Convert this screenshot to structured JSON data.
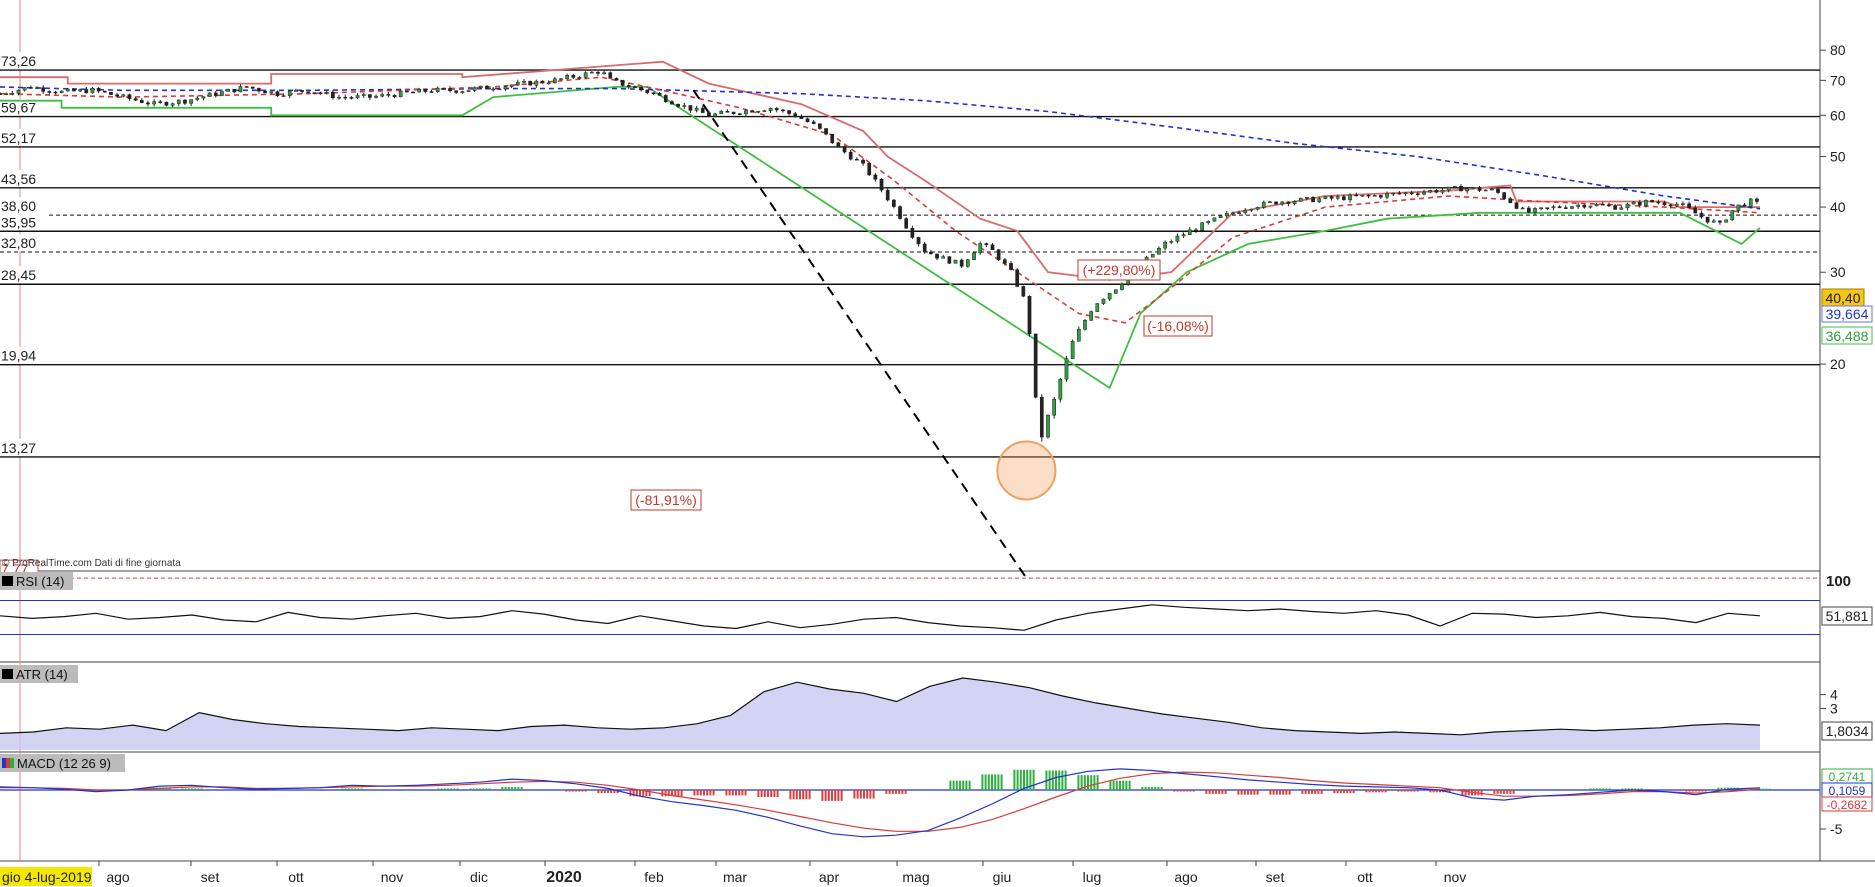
{
  "source_note": "© ProRealTime.com  Dati di fine giornata",
  "date_badge": "gio 4-lug-2019",
  "year_label": "2020",
  "colors": {
    "price_bull": "#2e9e3e",
    "price_bear": "#222222",
    "ma_short": "#d93a3a",
    "ma_long": "#2233cc",
    "stop_high": "#d96b6b",
    "stop_low": "#3fbf3f",
    "level_line": "#111111",
    "annotation": "#c0392b",
    "highlight_circle": "#f0a060",
    "indicator_fill": "#c8c8f0",
    "macd_line": "#2233cc",
    "macd_signal": "#d93a3a",
    "hist_pos": "#2eaf3e",
    "hist_neg": "#d94040",
    "last_price_bg": "#f5c518"
  },
  "chart_data": [
    {
      "type": "candlestick",
      "title": "",
      "x_labels": [
        "ago",
        "set",
        "ott",
        "nov",
        "dic",
        "2020",
        "feb",
        "mar",
        "apr",
        "mag",
        "giu",
        "lug",
        "ago",
        "set",
        "ott",
        "nov"
      ],
      "y_ticks": [
        20,
        30,
        40,
        50,
        60,
        70,
        80
      ],
      "ylim": [
        10,
        80
      ],
      "levels": [
        {
          "value": "73,26",
          "style": "solid"
        },
        {
          "value": "59,67",
          "style": "solid"
        },
        {
          "value": "52,17",
          "style": "solid"
        },
        {
          "value": "43,56",
          "style": "solid"
        },
        {
          "value": "38,60",
          "style": "dashed"
        },
        {
          "value": "35,95",
          "style": "solid"
        },
        {
          "value": "32,80",
          "style": "dashed"
        },
        {
          "value": "28,45",
          "style": "solid"
        },
        {
          "value": "19,94",
          "style": "solid"
        },
        {
          "value": "13,27",
          "style": "solid"
        },
        {
          "value": "7,77",
          "style": "dashed-red"
        }
      ],
      "annotations": [
        "(-81,91%)",
        "(+229,80%)",
        "(-16,08%)"
      ],
      "last_values": {
        "price": "40,40",
        "ma_long": "39,664",
        "stop_low": "36,488"
      },
      "close_series": [
        [
          0,
          66
        ],
        [
          10,
          68
        ],
        [
          20,
          66.5
        ],
        [
          30,
          67
        ],
        [
          40,
          65
        ],
        [
          50,
          63
        ],
        [
          60,
          64
        ],
        [
          70,
          66
        ],
        [
          80,
          68
        ],
        [
          90,
          66
        ],
        [
          100,
          67
        ],
        [
          110,
          65
        ],
        [
          120,
          65
        ],
        [
          130,
          66
        ],
        [
          140,
          67
        ],
        [
          150,
          67
        ],
        [
          160,
          68
        ],
        [
          170,
          69
        ],
        [
          180,
          70
        ],
        [
          190,
          72
        ],
        [
          195,
          73
        ],
        [
          198,
          70
        ],
        [
          205,
          68
        ],
        [
          212,
          66
        ],
        [
          220,
          63
        ],
        [
          230,
          60
        ],
        [
          240,
          61
        ],
        [
          250,
          62
        ],
        [
          258,
          60
        ],
        [
          265,
          57
        ],
        [
          272,
          52
        ],
        [
          280,
          48
        ],
        [
          285,
          44
        ],
        [
          290,
          40
        ],
        [
          295,
          36
        ],
        [
          300,
          33
        ],
        [
          305,
          32
        ],
        [
          312,
          31
        ],
        [
          318,
          34
        ],
        [
          322,
          33
        ],
        [
          328,
          30
        ],
        [
          333,
          26
        ],
        [
          337,
          14
        ],
        [
          342,
          17
        ],
        [
          348,
          22
        ],
        [
          355,
          26
        ],
        [
          362,
          28
        ],
        [
          370,
          31
        ],
        [
          378,
          34
        ],
        [
          386,
          36
        ],
        [
          395,
          38
        ],
        [
          405,
          40
        ],
        [
          415,
          41
        ],
        [
          430,
          41.5
        ],
        [
          445,
          42
        ],
        [
          455,
          42.5
        ],
        [
          465,
          43
        ],
        [
          475,
          43.5
        ],
        [
          485,
          43
        ],
        [
          495,
          39
        ],
        [
          505,
          40
        ],
        [
          515,
          40.5
        ],
        [
          525,
          40
        ],
        [
          535,
          41
        ],
        [
          545,
          40.5
        ],
        [
          553,
          38
        ],
        [
          558,
          37
        ],
        [
          563,
          40
        ],
        [
          568,
          41
        ],
        [
          571,
          40.4
        ]
      ],
      "ma_long_series": [
        [
          0,
          68
        ],
        [
          40,
          67
        ],
        [
          100,
          67
        ],
        [
          160,
          67.5
        ],
        [
          200,
          67.5
        ],
        [
          260,
          66
        ],
        [
          300,
          64
        ],
        [
          340,
          61
        ],
        [
          380,
          57
        ],
        [
          420,
          53
        ],
        [
          460,
          50
        ],
        [
          500,
          46
        ],
        [
          540,
          42
        ],
        [
          571,
          39.7
        ]
      ],
      "ma_short_series": [
        [
          0,
          66
        ],
        [
          40,
          65
        ],
        [
          100,
          66
        ],
        [
          160,
          68
        ],
        [
          195,
          71
        ],
        [
          215,
          67
        ],
        [
          240,
          62
        ],
        [
          270,
          55
        ],
        [
          290,
          45
        ],
        [
          310,
          36
        ],
        [
          330,
          30
        ],
        [
          350,
          25
        ],
        [
          365,
          24
        ],
        [
          380,
          28
        ],
        [
          400,
          35
        ],
        [
          430,
          40
        ],
        [
          470,
          42
        ],
        [
          500,
          41
        ],
        [
          540,
          40
        ],
        [
          571,
          39
        ]
      ],
      "stop_high_series": [
        [
          0,
          71
        ],
        [
          22,
          71
        ],
        [
          22,
          69
        ],
        [
          88,
          69
        ],
        [
          88,
          72
        ],
        [
          150,
          72
        ],
        [
          150,
          71
        ],
        [
          215,
          76
        ],
        [
          230,
          69
        ],
        [
          260,
          63
        ],
        [
          280,
          56
        ],
        [
          288,
          50
        ],
        [
          300,
          45
        ],
        [
          318,
          38
        ],
        [
          330,
          36
        ],
        [
          340,
          30
        ],
        [
          360,
          29
        ],
        [
          380,
          30
        ],
        [
          400,
          39
        ],
        [
          430,
          42
        ],
        [
          470,
          43
        ],
        [
          490,
          44
        ],
        [
          492,
          41
        ],
        [
          540,
          41
        ],
        [
          545,
          40
        ],
        [
          571,
          40
        ]
      ],
      "stop_low_series": [
        [
          0,
          64
        ],
        [
          20,
          64
        ],
        [
          20,
          62
        ],
        [
          88,
          62
        ],
        [
          88,
          60
        ],
        [
          150,
          60
        ],
        [
          160,
          65
        ],
        [
          200,
          68
        ],
        [
          210,
          68
        ],
        [
          360,
          18
        ],
        [
          370,
          25
        ],
        [
          385,
          30
        ],
        [
          405,
          34
        ],
        [
          430,
          36
        ],
        [
          450,
          38
        ],
        [
          480,
          39
        ],
        [
          495,
          39
        ],
        [
          545,
          39
        ],
        [
          565,
          34
        ],
        [
          571,
          36.5
        ]
      ],
      "trend_line": [
        [
          225,
          67
        ],
        [
          333,
          7.77
        ]
      ],
      "highlight_point": [
        333,
        12.5
      ]
    },
    {
      "type": "line",
      "title": "RSI (14)",
      "y_ticks": [
        100
      ],
      "last_value": "51,881",
      "values": [
        52,
        49,
        51,
        55,
        48,
        50,
        53,
        47,
        45,
        56,
        50,
        48,
        52,
        55,
        49,
        51,
        58,
        54,
        47,
        43,
        52,
        46,
        40,
        37,
        45,
        38,
        42,
        48,
        50,
        44,
        40,
        38,
        35,
        47,
        55,
        60,
        65,
        62,
        60,
        58,
        60,
        57,
        55,
        58,
        53,
        40,
        55,
        54,
        50,
        52,
        56,
        51,
        49,
        44,
        55,
        52
      ]
    },
    {
      "type": "area",
      "title": "ATR (14)",
      "y_ticks": [
        3,
        4
      ],
      "last_value": "1,8034",
      "values": [
        1.2,
        1.3,
        1.6,
        1.5,
        1.8,
        1.4,
        2.7,
        2.2,
        1.9,
        1.7,
        1.6,
        1.5,
        1.4,
        1.6,
        1.5,
        1.4,
        1.7,
        1.8,
        1.6,
        1.5,
        1.6,
        1.9,
        2.5,
        4.2,
        4.9,
        4.4,
        4.1,
        3.5,
        4.6,
        5.2,
        4.9,
        4.5,
        3.9,
        3.4,
        3.0,
        2.6,
        2.3,
        2.0,
        1.6,
        1.4,
        1.3,
        1.2,
        1.3,
        1.2,
        1.1,
        1.3,
        1.4,
        1.5,
        1.4,
        1.5,
        1.6,
        1.8,
        1.9,
        1.8
      ]
    },
    {
      "type": "line",
      "title": "MACD (12 26 9)",
      "y_ticks": [
        -5
      ],
      "last_values": [
        "0,2741",
        "0,1059",
        "-0,2682"
      ],
      "macd": [
        0.4,
        0.3,
        0.1,
        -0.2,
        0.0,
        0.5,
        0.6,
        0.3,
        0.1,
        0.2,
        0.3,
        0.6,
        0.5,
        0.6,
        0.8,
        1.0,
        1.4,
        1.2,
        0.8,
        0.2,
        -0.8,
        -1.5,
        -2.0,
        -2.6,
        -3.5,
        -4.6,
        -5.6,
        -6.0,
        -5.8,
        -5.2,
        -3.6,
        -1.8,
        0.2,
        1.6,
        2.4,
        2.7,
        2.5,
        2.1,
        1.7,
        1.3,
        1.0,
        0.7,
        0.5,
        0.4,
        0.3,
        0.0,
        -1.0,
        -1.3,
        -0.8,
        -0.6,
        -0.3,
        0.0,
        -0.2,
        -0.6,
        0.1,
        0.27
      ],
      "signal": [
        0.3,
        0.3,
        0.2,
        0.0,
        0.0,
        0.2,
        0.4,
        0.4,
        0.2,
        0.2,
        0.3,
        0.4,
        0.5,
        0.5,
        0.6,
        0.8,
        1.0,
        1.1,
        1.0,
        0.6,
        0.0,
        -0.7,
        -1.3,
        -1.9,
        -2.6,
        -3.4,
        -4.2,
        -4.9,
        -5.3,
        -5.3,
        -4.8,
        -3.8,
        -2.4,
        -0.9,
        0.5,
        1.5,
        2.1,
        2.3,
        2.2,
        1.9,
        1.6,
        1.2,
        0.9,
        0.7,
        0.5,
        0.3,
        -0.3,
        -0.8,
        -0.8,
        -0.7,
        -0.5,
        -0.2,
        -0.2,
        -0.4,
        -0.2,
        0.1
      ]
    }
  ]
}
